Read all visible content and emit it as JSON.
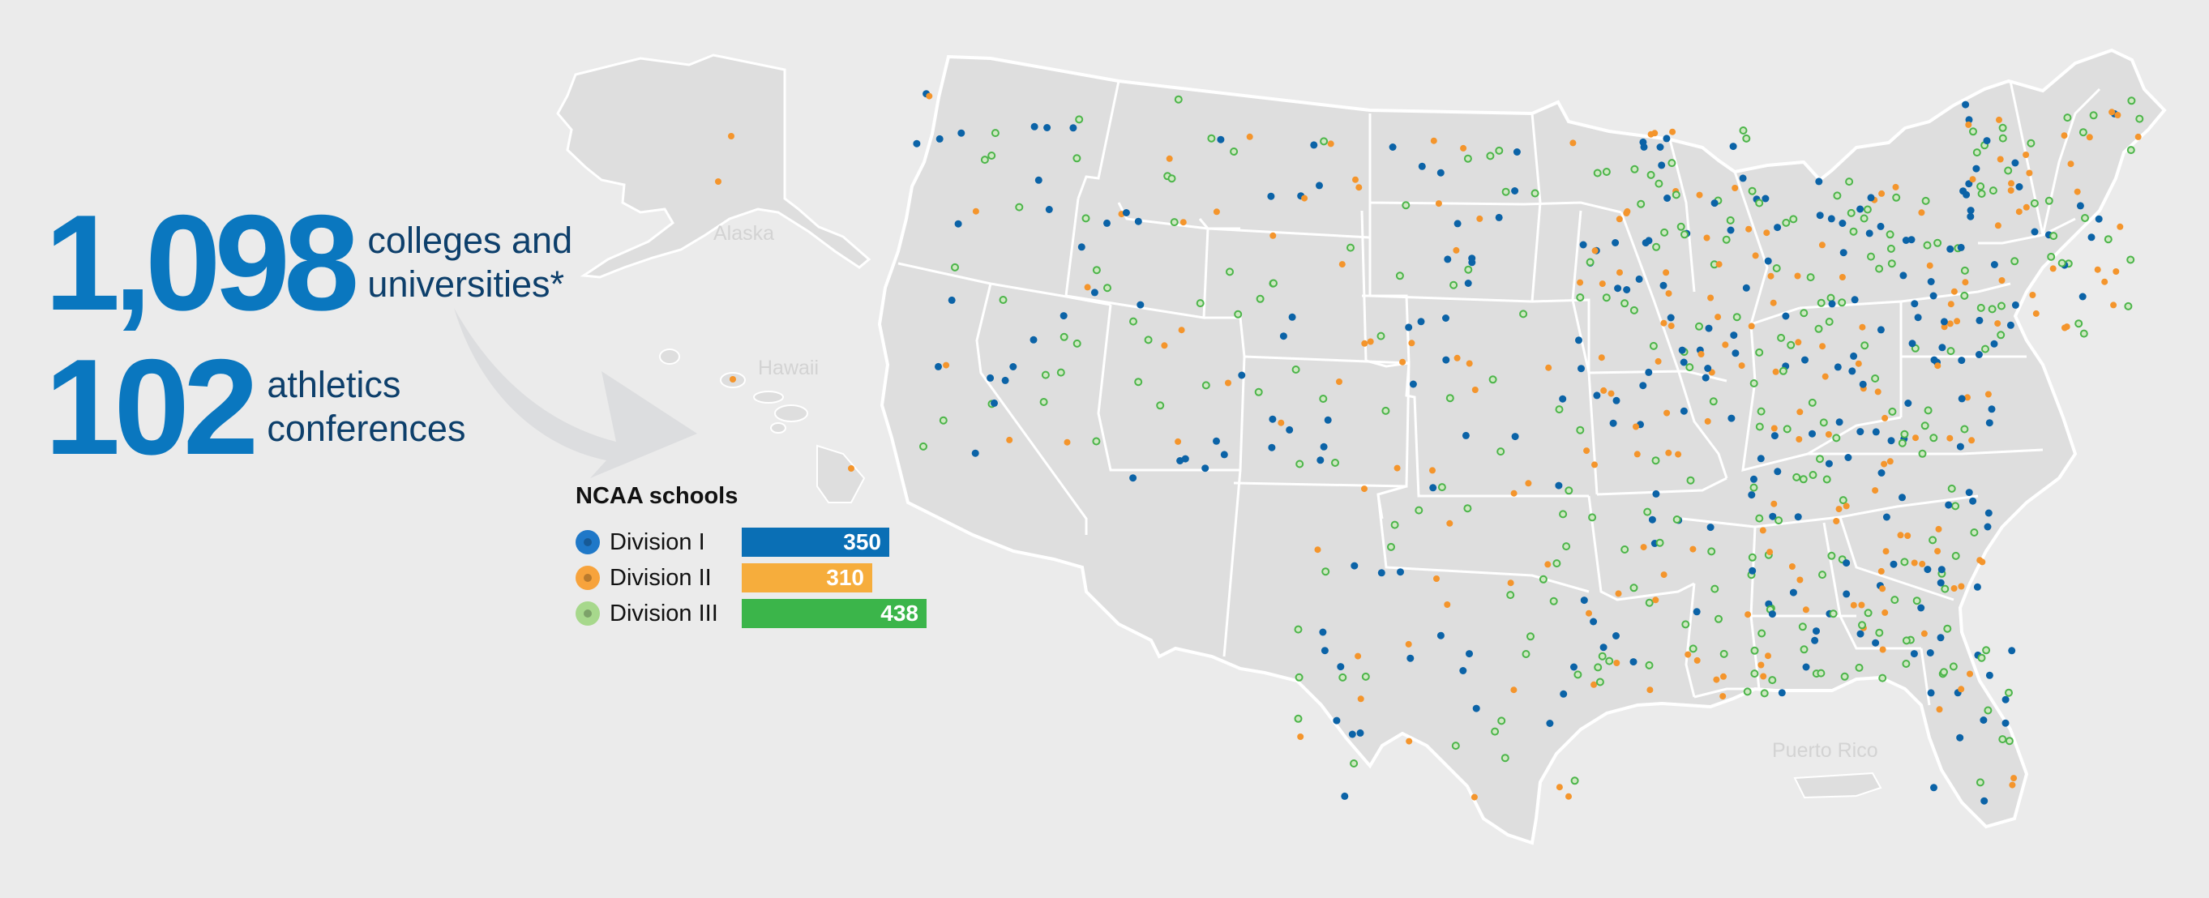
{
  "stats": {
    "colleges_number": "1,098",
    "colleges_label_line1": "colleges and",
    "colleges_label_line2": "universities*",
    "conferences_number": "102",
    "conferences_label_line1": "athletics",
    "conferences_label_line2": "conferences"
  },
  "regions": {
    "alaska": "Alaska",
    "hawaii": "Hawaii",
    "puerto_rico": "Puerto Rico"
  },
  "legend": {
    "title": "NCAA schools",
    "items": [
      {
        "label": "Division I",
        "count": 350,
        "count_text": "350",
        "color": "#0a6fb5",
        "swatch": "#1f78c8"
      },
      {
        "label": "Division II",
        "count": 310,
        "count_text": "310",
        "color": "#f6ad3c",
        "swatch": "#f7a33c"
      },
      {
        "label": "Division III",
        "count": 438,
        "count_text": "438",
        "color": "#3bb54a",
        "swatch": "#a7d88c"
      }
    ]
  },
  "colors": {
    "land": "#dedede",
    "state_border": "#ffffff",
    "background": "#ebebeb",
    "d1": "#0b63a7",
    "d2": "#f4952c",
    "d3": "#4cb54a",
    "arrow": "#d9dadb"
  }
}
